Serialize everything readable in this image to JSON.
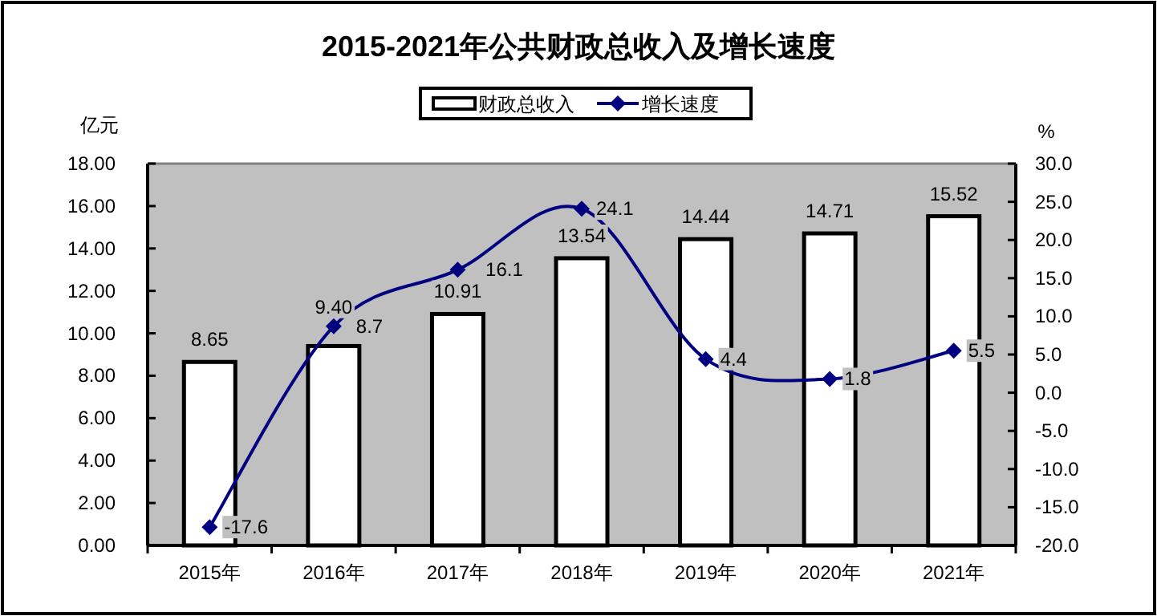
{
  "chart_data": {
    "type": "bar",
    "title": "2015-2021年公共财政总收入及增长速度",
    "categories": [
      "2015年",
      "2016年",
      "2017年",
      "2018年",
      "2019年",
      "2020年",
      "2021年"
    ],
    "series": [
      {
        "name": "财政总收入",
        "type": "bar",
        "color": "#ffffff",
        "values": [
          8.65,
          9.4,
          10.91,
          13.54,
          14.44,
          14.71,
          15.52
        ],
        "value_labels": [
          "8.65",
          "9.40",
          "10.91",
          "13.54",
          "14.44",
          "14.71",
          "15.52"
        ]
      },
      {
        "name": "增长速度",
        "type": "line",
        "axis": "y2",
        "color": "#000080",
        "values": [
          -17.6,
          8.7,
          16.1,
          24.1,
          4.4,
          1.8,
          5.5
        ],
        "value_labels": [
          "-17.6",
          "8.7",
          "16.1",
          "24.1",
          "4.4",
          "1.8",
          "5.5"
        ]
      }
    ],
    "ylabel": "亿元",
    "y2label": "%",
    "ylim": [
      0,
      18
    ],
    "yticks": [
      {
        "value": 0,
        "label": "0.00"
      },
      {
        "value": 2,
        "label": "2.00"
      },
      {
        "value": 4,
        "label": "4.00"
      },
      {
        "value": 6,
        "label": "6.00"
      },
      {
        "value": 8,
        "label": "8.00"
      },
      {
        "value": 10,
        "label": "10.00"
      },
      {
        "value": 12,
        "label": "12.00"
      },
      {
        "value": 14,
        "label": "14.00"
      },
      {
        "value": 16,
        "label": "16.00"
      },
      {
        "value": 18,
        "label": "18.00"
      }
    ],
    "y2lim": [
      -20,
      30
    ],
    "y2ticks": [
      {
        "value": -20,
        "label": "-20.0"
      },
      {
        "value": -15,
        "label": "-15.0"
      },
      {
        "value": -10,
        "label": "-10.0"
      },
      {
        "value": -5,
        "label": "-5.0"
      },
      {
        "value": 0,
        "label": "0.0"
      },
      {
        "value": 5,
        "label": "5.0"
      },
      {
        "value": 10,
        "label": "10.0"
      },
      {
        "value": 15,
        "label": "15.0"
      },
      {
        "value": 20,
        "label": "20.0"
      },
      {
        "value": 25,
        "label": "25.0"
      },
      {
        "value": 30,
        "label": "30.0"
      }
    ],
    "legend": "top",
    "grid": false,
    "marker": "diamond",
    "line_style": "solid"
  }
}
